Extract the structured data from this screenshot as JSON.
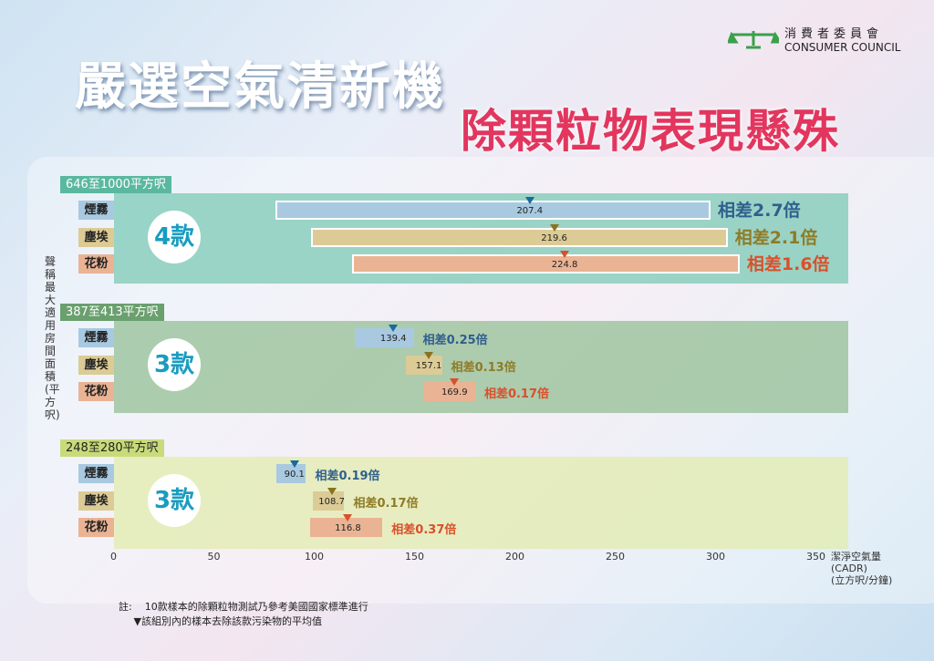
{
  "title": "嚴選空氣清新機",
  "subtitle": "除顆粒物表現懸殊",
  "logo": {
    "zh": "消費者委員會",
    "en": "CONSUMER COUNCIL"
  },
  "colors": {
    "smoke": "#a8c9e0",
    "dust": "#dccb95",
    "pollen": "#eab394",
    "smoke_text": "#2f5f8e",
    "dust_text": "#8f7b25",
    "pollen_text": "#d9502a",
    "smoke_marker": "#1a6a9a",
    "dust_marker": "#8a7320",
    "pollen_marker": "#d9502a"
  },
  "chart_data": {
    "type": "range-bar",
    "ylabel": "聲稱最大適用房間面積(平方呎)",
    "xlabel": [
      "潔淨空氣量",
      "(CADR)",
      "(立方呎/分鐘)"
    ],
    "xlim": [
      0,
      350
    ],
    "xticks": [
      "0",
      "50",
      "100",
      "150",
      "200",
      "250",
      "300",
      "350"
    ],
    "groups": [
      {
        "label": "646至1000平方呎",
        "count": "4款",
        "color": "#5bb8a0",
        "band": "#7ccab5",
        "rows": [
          {
            "pollutant": "煙霧",
            "min": 80.7,
            "max": 297.5,
            "avg": 207.4,
            "avg_label": "207.4",
            "diff": "相差2.7倍"
          },
          {
            "pollutant": "塵埃",
            "min": 98.4,
            "max": 306,
            "avg": 219.6,
            "avg_label": "219.6",
            "diff": "相差2.1倍"
          },
          {
            "pollutant": "花粉",
            "min": 119,
            "max": 312,
            "avg": 224.8,
            "avg_label": "224.8",
            "diff": "相差1.6倍"
          }
        ]
      },
      {
        "label": "387至413平方呎",
        "count": "3款",
        "color": "#6a9f6e",
        "band": "#94bf94",
        "rows": [
          {
            "pollutant": "煙霧",
            "min": 120.2,
            "max": 149.6,
            "avg": 139.4,
            "avg_label": "139.4",
            "diff": "相差0.25倍"
          },
          {
            "pollutant": "塵埃",
            "min": 145.7,
            "max": 163.7,
            "avg": 157.1,
            "avg_label": "157.1",
            "diff": "相差0.13倍"
          },
          {
            "pollutant": "花粉",
            "min": 154.3,
            "max": 180.2,
            "avg": 169.9,
            "avg_label": "169.9",
            "diff": "相差0.17倍"
          }
        ]
      },
      {
        "label": "248至280平方呎",
        "count": "3款",
        "color": "#c8db7a",
        "band": "#e2ecae",
        "rows": [
          {
            "pollutant": "煙霧",
            "min": 81,
            "max": 95.9,
            "avg": 90.1,
            "avg_label": "90.1",
            "diff": "相差0.19倍"
          },
          {
            "pollutant": "塵埃",
            "min": 99.3,
            "max": 115,
            "avg": 108.7,
            "avg_label": "108.7",
            "diff": "相差0.17倍"
          },
          {
            "pollutant": "花粉",
            "min": 98,
            "max": 134,
            "avg": 116.8,
            "avg_label": "116.8",
            "diff": "相差0.37倍"
          }
        ]
      }
    ]
  },
  "note": {
    "prefix": "註:",
    "line1": "10款樣本的除顆粒物測試乃參考美國國家標準進行",
    "line2": "▼該組別內的樣本去除該款污染物的平均值"
  }
}
